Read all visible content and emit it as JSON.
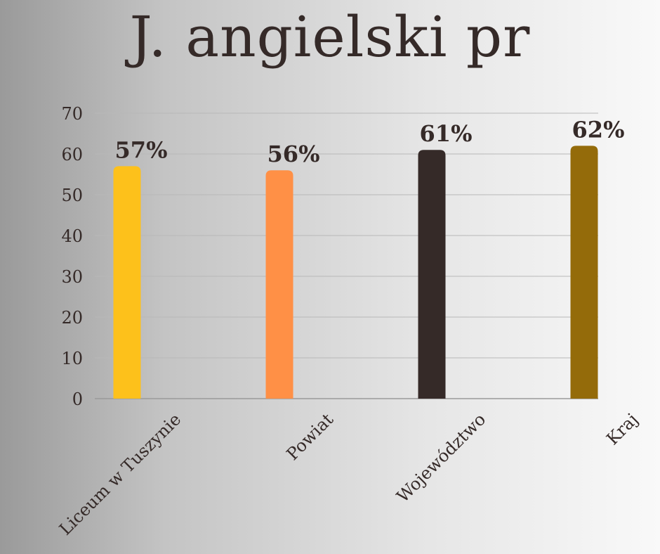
{
  "title": "J. angielski pr",
  "colors": {
    "background_left": "#9a9a9a",
    "background_right": "#f9f9f9",
    "text": "#352a28",
    "grid": "#b8b8b8"
  },
  "chart_data": {
    "type": "bar",
    "title": "J. angielski pr",
    "xlabel": "",
    "ylabel": "",
    "categories": [
      "Liceum w Tuszynie",
      "Powiat",
      "Województwo",
      "Kraj"
    ],
    "values": [
      57,
      56,
      61,
      62
    ],
    "data_labels": [
      "57%",
      "56%",
      "61%",
      "62%"
    ],
    "bar_colors": [
      "#fdc11b",
      "#ff9046",
      "#352a28",
      "#946b0a"
    ],
    "ylim": [
      0,
      70
    ],
    "yticks": [
      0,
      10,
      20,
      30,
      40,
      50,
      60,
      70
    ],
    "grid": true,
    "legend": "none"
  }
}
